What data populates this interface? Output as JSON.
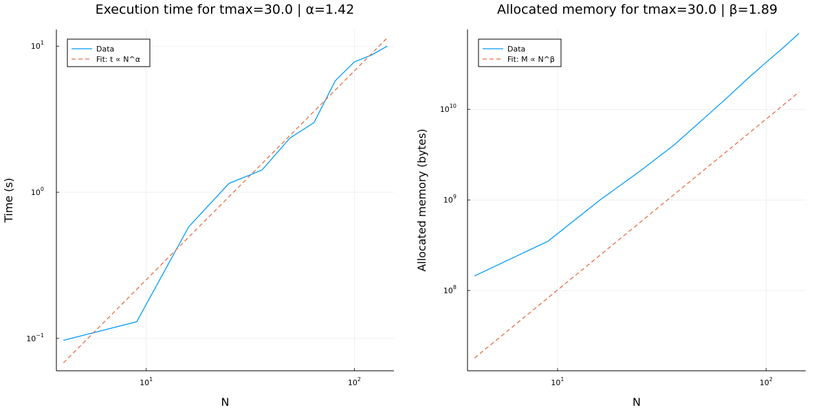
{
  "chart_data": [
    {
      "type": "line",
      "title": "Execution time for tmax=30.0 | α=1.42",
      "xlabel": "N",
      "ylabel": "Time (s)",
      "xscale": "log",
      "yscale": "log",
      "xlim": [
        3.7,
        155
      ],
      "ylim": [
        0.06,
        13
      ],
      "grid": true,
      "legend_position": "top-left",
      "x_ticks": [
        {
          "base": "10",
          "exp": "1",
          "value": 10
        },
        {
          "base": "10",
          "exp": "2",
          "value": 100
        }
      ],
      "y_ticks": [
        {
          "base": "10",
          "exp": "−1",
          "value": 0.1
        },
        {
          "base": "10",
          "exp": "0",
          "value": 1
        },
        {
          "base": "10",
          "exp": "1",
          "value": 10
        }
      ],
      "series": [
        {
          "name": "Data",
          "color": "#009AFA",
          "style": "solid",
          "x": [
            4,
            9,
            16,
            25,
            36,
            49,
            64,
            81,
            100,
            121,
            144
          ],
          "y": [
            0.097,
            0.13,
            0.58,
            1.15,
            1.42,
            2.35,
            3.0,
            5.8,
            7.8,
            8.7,
            10.0
          ]
        },
        {
          "name": "Fit: t ∝ N^α",
          "color": "#E26F46",
          "style": "dashed",
          "x": [
            4,
            144
          ],
          "y": [
            0.068,
            11.4
          ]
        }
      ]
    },
    {
      "type": "line",
      "title": "Allocated memory for tmax=30.0 | β=1.89",
      "xlabel": "N",
      "ylabel": "Allocated memory (bytes)",
      "xscale": "log",
      "yscale": "log",
      "xlim": [
        3.7,
        155
      ],
      "ylim": [
        13000000,
        76000000000
      ],
      "grid": true,
      "legend_position": "top-left",
      "x_ticks": [
        {
          "base": "10",
          "exp": "1",
          "value": 10
        },
        {
          "base": "10",
          "exp": "2",
          "value": 100
        }
      ],
      "y_ticks": [
        {
          "base": "10",
          "exp": "8",
          "value": 100000000
        },
        {
          "base": "10",
          "exp": "9",
          "value": 1000000000
        },
        {
          "base": "10",
          "exp": "10",
          "value": 10000000000
        }
      ],
      "series": [
        {
          "name": "Data",
          "color": "#009AFA",
          "style": "solid",
          "x": [
            4,
            9,
            16,
            25,
            36,
            49,
            64,
            81,
            100,
            121,
            144
          ],
          "y": [
            145000000,
            350000000,
            1000000000,
            2100000000,
            4000000000,
            7500000000,
            13000000000,
            21500000000,
            33000000000,
            48000000000,
            69000000000
          ]
        },
        {
          "name": "Fit: M ∝ N^β",
          "color": "#E26F46",
          "style": "dashed",
          "x": [
            4,
            144
          ],
          "y": [
            18000000,
            15500000000
          ]
        }
      ]
    }
  ]
}
